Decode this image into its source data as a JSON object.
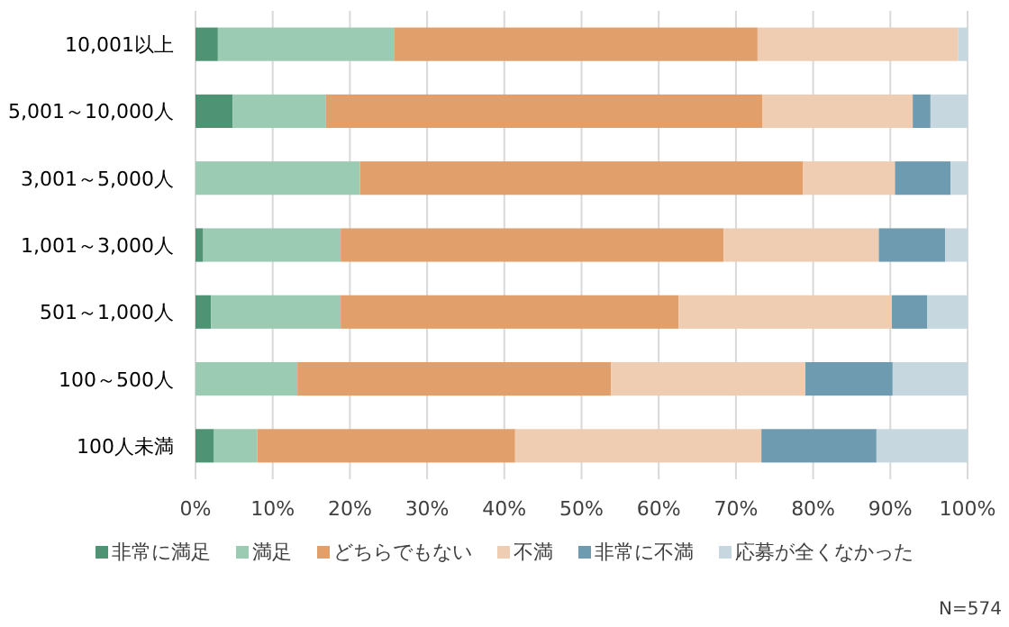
{
  "chart_data": {
    "type": "bar",
    "orientation": "horizontal",
    "stacked": true,
    "categories": [
      "10,001以上",
      "5,001～10,000人",
      "3,001～5,000人",
      "1,001～3,000人",
      "501～1,000人",
      "100～500人",
      "100人未満"
    ],
    "series": [
      {
        "name": "非常に満足",
        "color": "#4e9474",
        "values": [
          2.9,
          4.8,
          0,
          1.0,
          2.0,
          0,
          2.4
        ]
      },
      {
        "name": "満足",
        "color": "#9bcbb3",
        "values": [
          22.8,
          12.1,
          21.3,
          17.8,
          16.8,
          13.2,
          5.6
        ]
      },
      {
        "name": "どちらでもない",
        "color": "#e1a06b",
        "values": [
          47.1,
          56.5,
          57.4,
          49.6,
          43.8,
          40.6,
          33.4
        ]
      },
      {
        "name": "不満",
        "color": "#efcdb2",
        "values": [
          26.0,
          19.5,
          11.9,
          20.1,
          27.6,
          25.2,
          31.9
        ]
      },
      {
        "name": "非常に不満",
        "color": "#6f9bb0",
        "values": [
          0,
          2.3,
          7.2,
          8.6,
          4.6,
          11.3,
          14.9
        ]
      },
      {
        "name": "応募が全くなかった",
        "color": "#c6d7df",
        "values": [
          1.2,
          4.8,
          2.2,
          2.9,
          5.2,
          9.7,
          11.8
        ]
      }
    ],
    "xlim": [
      0,
      100
    ],
    "xticks": [
      {
        "value": 0,
        "label": "0%"
      },
      {
        "value": 10,
        "label": "10%"
      },
      {
        "value": 20,
        "label": "20%"
      },
      {
        "value": 30,
        "label": "30%"
      },
      {
        "value": 40,
        "label": "40%"
      },
      {
        "value": 50,
        "label": "50%"
      },
      {
        "value": 60,
        "label": "60%"
      },
      {
        "value": 70,
        "label": "70%"
      },
      {
        "value": 80,
        "label": "80%"
      },
      {
        "value": 90,
        "label": "90%"
      },
      {
        "value": 100,
        "label": "100%"
      }
    ],
    "grid": "x",
    "legend": "bottom",
    "annotations": [
      "N=574"
    ]
  }
}
